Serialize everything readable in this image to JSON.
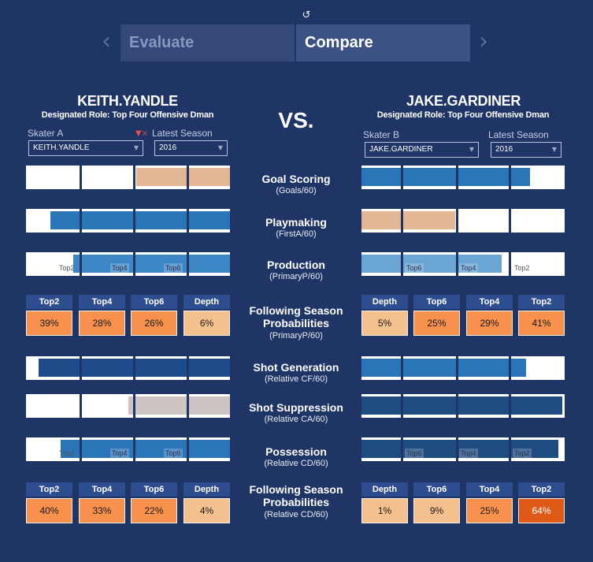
{
  "toolbar": {
    "reset_icon": "undo-icon"
  },
  "nav": {
    "prev_icon": "chevron-left-icon",
    "next_icon": "chevron-right-icon",
    "tabs": [
      "Evaluate",
      "Compare"
    ],
    "active_tab": "Compare"
  },
  "vs_label": "VS.",
  "colors": {
    "background": "#1f3566",
    "bar_blue": "#2a74b8",
    "bar_navy": "#1e4c8a",
    "bar_peach": "#e3b796",
    "bar_gray": "#ccc5c3",
    "prob_header": "#2e4d8f",
    "prob_high": "#e05a17",
    "prob_mid": "#f7914d",
    "prob_low": "#f4c08e"
  },
  "left": {
    "name": "KEITH.YANDLE",
    "role": "Designated Role: Top Four Offensive Dman",
    "skater_label": "Skater A",
    "season_label": "Latest Season",
    "skater_value": "KEITH.YANDLE",
    "season_value": "2016",
    "filter_icon": "filter-clear-icon"
  },
  "right": {
    "name": "JAKE.GARDINER",
    "role": "Designated Role: Top Four Offensive Dman",
    "skater_label": "Skater B",
    "season_label": "Latest Season",
    "skater_value": "JAKE.GARDINER",
    "season_value": "2016"
  },
  "metrics": [
    {
      "title": "Goal Scoring",
      "sub": "(Goals/60)"
    },
    {
      "title": "Playmaking",
      "sub": "(FirstA/60)"
    },
    {
      "title": "Production",
      "sub": "(PrimaryP/60)"
    },
    {
      "title": "Following Season Probabilities",
      "sub": "(PrimaryP/60)"
    },
    {
      "title": "Shot Generation",
      "sub": "(Relative CF/60)"
    },
    {
      "title": "Shot Suppression",
      "sub": "(Relative CA/60)"
    },
    {
      "title": "Possession",
      "sub": "(Relative CD/60)"
    },
    {
      "title": "Following Season Probabilities",
      "sub": "(Relative CD/60)"
    }
  ],
  "left_bars": [
    {
      "fill_from": 0.54,
      "fill_to": 1.0,
      "color": "#e3b796",
      "ticks": []
    },
    {
      "fill_from": 0.12,
      "fill_to": 1.0,
      "color": "#2a74b8",
      "ticks": []
    },
    {
      "fill_from": 0.23,
      "fill_to": 1.0,
      "color": "#3d86c6",
      "ticks": [
        "Top2",
        "Top4",
        "Top6"
      ]
    },
    {
      "fill_from": 0.06,
      "fill_to": 1.0,
      "color": "#1e4c8a",
      "ticks": []
    },
    {
      "fill_from": 0.5,
      "fill_to": 1.0,
      "color": "#ccc5c3",
      "ticks": []
    },
    {
      "fill_from": 0.17,
      "fill_to": 1.0,
      "color": "#2a74b8",
      "ticks": [
        "Top2",
        "Top4",
        "Top6"
      ]
    }
  ],
  "right_bars": [
    {
      "fill_from": 0.0,
      "fill_to": 0.83,
      "color": "#2a74b8",
      "ticks": []
    },
    {
      "fill_from": 0.0,
      "fill_to": 0.46,
      "color": "#e3b796",
      "ticks": []
    },
    {
      "fill_from": 0.0,
      "fill_to": 0.69,
      "color": "#6aa5d4",
      "ticks": [
        "Top6",
        "Top4",
        "Top2"
      ]
    },
    {
      "fill_from": 0.0,
      "fill_to": 0.81,
      "color": "#2a74b8",
      "ticks": []
    },
    {
      "fill_from": 0.0,
      "fill_to": 0.99,
      "color": "#1e4b80",
      "ticks": []
    },
    {
      "fill_from": 0.0,
      "fill_to": 0.97,
      "color": "#1e4b80",
      "ticks": [
        "Top6",
        "Top4",
        "Top2"
      ]
    }
  ],
  "prob_headers_left": [
    "Top2",
    "Top4",
    "Top6",
    "Depth"
  ],
  "prob_headers_right": [
    "Depth",
    "Top6",
    "Top4",
    "Top2"
  ],
  "prob1_left": [
    "39%",
    "28%",
    "26%",
    "6%"
  ],
  "prob1_right": [
    "5%",
    "25%",
    "29%",
    "41%"
  ],
  "prob2_left": [
    "40%",
    "33%",
    "22%",
    "4%"
  ],
  "prob2_right": [
    "1%",
    "9%",
    "25%",
    "64%"
  ]
}
